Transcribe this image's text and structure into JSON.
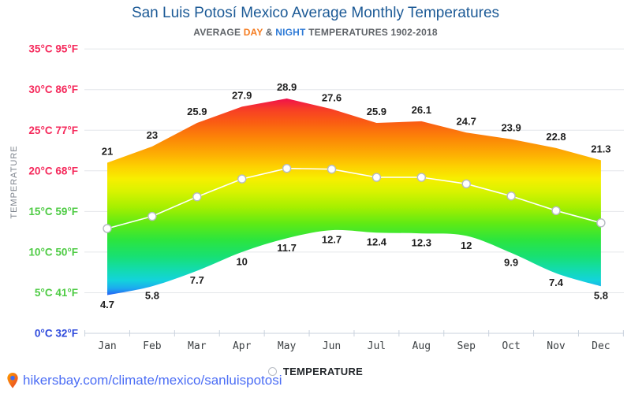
{
  "header": {
    "title": "San Luis Potosí Mexico Average Monthly Temperatures",
    "subtitle": {
      "average": "AVERAGE",
      "day": " DAY ",
      "amp": "& ",
      "night": "NIGHT",
      "rest": " TEMPERATURES 1902-2018"
    }
  },
  "legend": {
    "label": "TEMPERATURE"
  },
  "footer": {
    "url": "hikersbay.com/climate/mexico/sanluispotosi"
  },
  "colors": {
    "pink": "#f5295b",
    "green": "#4ecb44",
    "blue": "#2d49dc",
    "title_blue": "#1c5a96",
    "subtitle_gray": "#5f6368",
    "day_orange": "#f57c20",
    "night_blue": "#2e7ad6",
    "link_blue": "#4c6ef5",
    "grid": "#e4e6ea",
    "axis": "#c9d2dd",
    "label_dark": "#1e1e1e",
    "month_gray": "#3c4043",
    "marker_stroke": "#b5bac2",
    "legend_dark": "#23272b",
    "axis_title_gray": "#7d838c",
    "line_white": "#ffffff",
    "pin_orange": "#ffa000",
    "pin_red": "#e8402a",
    "pin_hole_blue": "#3d6df2"
  },
  "chart_data": {
    "type": "area",
    "subtype": "day-night-temperature-band with rainbow gradient fill mapped to temperature",
    "title": "San Luis Potosí Mexico Average Monthly Temperatures",
    "xlabel": "",
    "ylabel": "TEMPERATURE",
    "ylim": [
      0,
      35
    ],
    "grid": true,
    "legend_position": "bottom",
    "categories": [
      "Jan",
      "Feb",
      "Mar",
      "Apr",
      "May",
      "Jun",
      "Jul",
      "Aug",
      "Sep",
      "Oct",
      "Nov",
      "Dec"
    ],
    "series": [
      {
        "name": "DAY",
        "role": "band-top",
        "values": [
          21,
          23,
          25.9,
          27.9,
          28.9,
          27.6,
          25.9,
          26.1,
          24.7,
          23.9,
          22.8,
          21.3
        ],
        "labels": [
          "21",
          "23",
          "25.9",
          "27.9",
          "28.9",
          "27.6",
          "25.9",
          "26.1",
          "24.7",
          "23.9",
          "22.8",
          "21.3"
        ],
        "label_position": "above"
      },
      {
        "name": "NIGHT",
        "role": "band-bottom",
        "values": [
          4.7,
          5.8,
          7.7,
          10,
          11.7,
          12.7,
          12.4,
          12.3,
          12,
          9.9,
          7.4,
          5.8
        ],
        "labels": [
          "4.7",
          "5.8",
          "7.7",
          "10",
          "11.7",
          "12.7",
          "12.4",
          "12.3",
          "12",
          "9.9",
          "7.4",
          "5.8"
        ],
        "label_position": "below"
      },
      {
        "name": "TEMPERATURE",
        "role": "average-line-with-markers",
        "values": [
          12.9,
          14.4,
          16.8,
          19,
          20.3,
          20.2,
          19.2,
          19.2,
          18.4,
          16.9,
          15.1,
          13.6
        ],
        "labels": []
      }
    ],
    "y_axis": {
      "title": "TEMPERATURE",
      "ticks": [
        {
          "celsius": "35°C",
          "fahrenheit": "95°F",
          "value": 35,
          "color_key": "pink"
        },
        {
          "celsius": "30°C",
          "fahrenheit": "86°F",
          "value": 30,
          "color_key": "pink"
        },
        {
          "celsius": "25°C",
          "fahrenheit": "77°F",
          "value": 25,
          "color_key": "pink"
        },
        {
          "celsius": "20°C",
          "fahrenheit": "68°F",
          "value": 20,
          "color_key": "pink"
        },
        {
          "celsius": "15°C",
          "fahrenheit": "59°F",
          "value": 15,
          "color_key": "green"
        },
        {
          "celsius": "10°C",
          "fahrenheit": "50°F",
          "value": 10,
          "color_key": "green"
        },
        {
          "celsius": "5°C",
          "fahrenheit": "41°F",
          "value": 5,
          "color_key": "green"
        },
        {
          "celsius": "0°C",
          "fahrenheit": "32°F",
          "value": 0,
          "color_key": "blue"
        }
      ]
    },
    "gradient_stops": [
      {
        "t": 35,
        "color": "#c9083e"
      },
      {
        "t": 28.9,
        "color": "#f0104c"
      },
      {
        "t": 27.5,
        "color": "#f73f25"
      },
      {
        "t": 26,
        "color": "#fa5c13"
      },
      {
        "t": 24,
        "color": "#fc8607"
      },
      {
        "t": 22,
        "color": "#fdaf03"
      },
      {
        "t": 20.5,
        "color": "#fdd101"
      },
      {
        "t": 19,
        "color": "#f7ef00"
      },
      {
        "t": 17.5,
        "color": "#d9f300"
      },
      {
        "t": 15.5,
        "color": "#a5ef00"
      },
      {
        "t": 13.5,
        "color": "#5fea14"
      },
      {
        "t": 11.5,
        "color": "#2ce53e"
      },
      {
        "t": 9.5,
        "color": "#18e072"
      },
      {
        "t": 8,
        "color": "#13dca8"
      },
      {
        "t": 6.5,
        "color": "#13d3dc"
      },
      {
        "t": 5.5,
        "color": "#1ca8ef"
      },
      {
        "t": 4.5,
        "color": "#2b50f7"
      },
      {
        "t": 3.5,
        "color": "#3030f0"
      },
      {
        "t": 0,
        "color": "#3030f0"
      }
    ]
  }
}
